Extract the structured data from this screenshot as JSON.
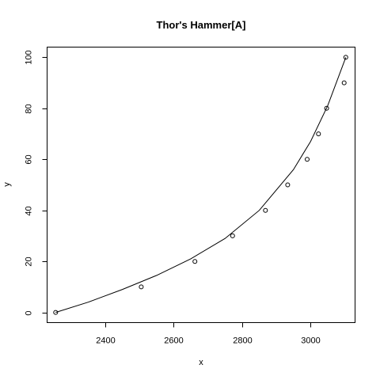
{
  "chart_data": {
    "type": "scatter",
    "title": "Thor's Hammer[A]",
    "xlabel": "x",
    "ylabel": "y",
    "xlim": [
      2230,
      3130
    ],
    "ylim": [
      -4,
      104
    ],
    "x_ticks": [
      2400,
      2600,
      2800,
      3000
    ],
    "y_ticks": [
      0,
      20,
      40,
      60,
      80,
      100
    ],
    "grid": false,
    "points": {
      "x": [
        2255,
        2505,
        2662,
        2772,
        2868,
        2933,
        2990,
        3023,
        3047,
        3098,
        3103
      ],
      "y": [
        0,
        10,
        20,
        30,
        40,
        50,
        60,
        70,
        80,
        90,
        100
      ]
    },
    "fit_curve": {
      "x": [
        2255,
        2350,
        2450,
        2550,
        2650,
        2750,
        2850,
        2950,
        3000,
        3050,
        3103
      ],
      "y": [
        0,
        4,
        9,
        14.5,
        21,
        29,
        40,
        56,
        67,
        81,
        100
      ]
    }
  }
}
